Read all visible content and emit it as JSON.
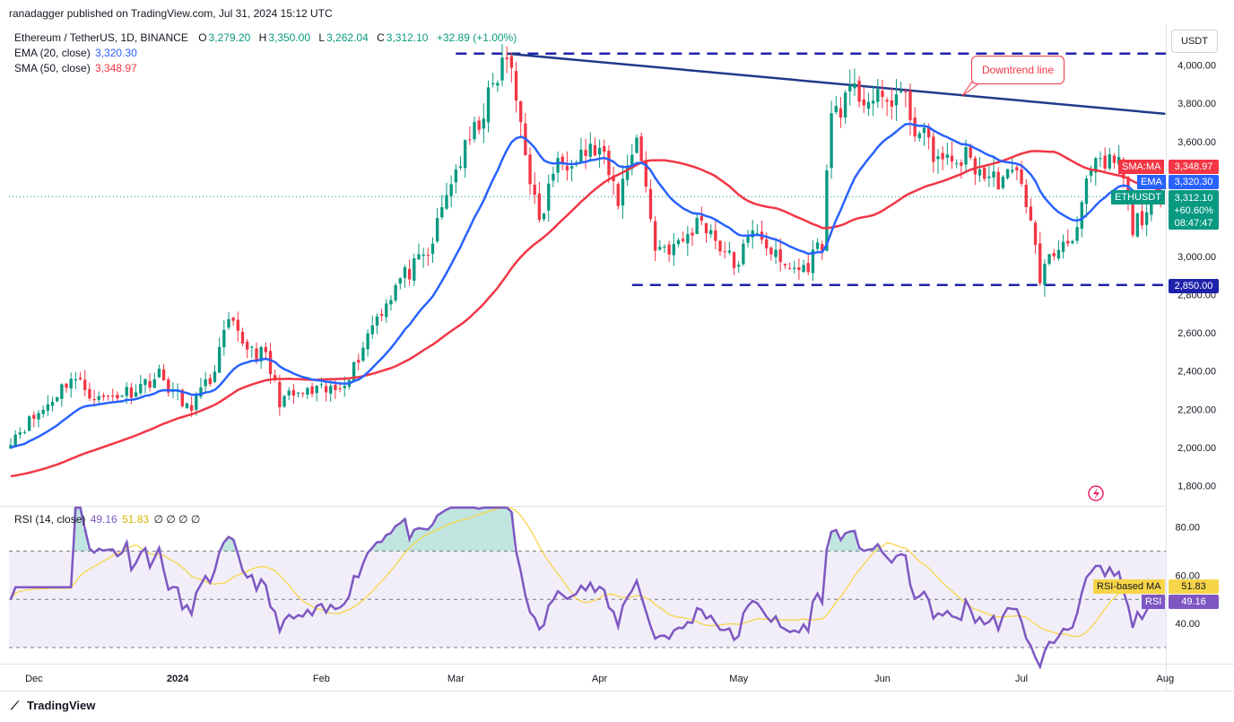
{
  "header": {
    "publisher": "ranadagger published on TradingView.com, Jul 31, 2024 15:12 UTC",
    "symbol": "Ethereum / TetherUS, 1D, BINANCE",
    "o_label": "O",
    "o_value": "3,279.20",
    "h_label": "H",
    "h_value": "3,350.00",
    "l_label": "L",
    "l_value": "3,262.04",
    "c_label": "C",
    "c_value": "3,312.10",
    "change": "+32.89 (+1.00%)"
  },
  "indicators": {
    "ema_label": "EMA (20, close)",
    "ema_value": "3,320.30",
    "sma_label": "SMA (50, close)",
    "sma_value": "3,348.97",
    "rsi_label": "RSI (14, close)",
    "rsi_value": "49.16",
    "rsi_ma_value": "51.83",
    "rsi_extra": "∅ ∅ ∅ ∅"
  },
  "currency_button": "USDT",
  "annotation": "Downtrend line",
  "axis_tags": {
    "sma_name": "SMA:MA",
    "sma_value": "3,348.97",
    "ema_name": "EMA",
    "ema_value": "3,320.30",
    "sym_name": "ETHUSDT",
    "price": "3,312.10",
    "change_pct": "+60.60%",
    "countdown": "08:47:47",
    "support": "2,850.00",
    "rsi_ma_name": "RSI-based MA",
    "rsi_ma_value": "51.83",
    "rsi_name": "RSI",
    "rsi_value": "49.16"
  },
  "brand": "TradingView",
  "colors": {
    "up": "#089981",
    "down": "#f23645",
    "ema": "#2962ff",
    "sma": "#f23645",
    "trendline": "#1e3a8a",
    "support": "#1e22aa",
    "rsi": "#7e57c2",
    "rsi_ma": "#f7d548"
  },
  "chart_data": [
    {
      "type": "candlestick",
      "title": "Ethereum / TetherUS, 1D, BINANCE",
      "ylim": [
        1700,
        4100
      ],
      "y_ticks": [
        "4,000.00",
        "3,800.00",
        "3,600.00",
        "3,400.00",
        "3,200.00",
        "3,000.00",
        "2,800.00",
        "2,600.00",
        "2,400.00",
        "2,200.00",
        "2,000.00",
        "1,800.00"
      ],
      "x_ticks": [
        "Dec",
        "2024",
        "Feb",
        "Mar",
        "Apr",
        "May",
        "Jun",
        "Jul",
        "Aug"
      ],
      "price_anchors": [
        [
          "2023-11-26",
          2050
        ],
        [
          "2023-12-03",
          2200
        ],
        [
          "2023-12-09",
          2370
        ],
        [
          "2023-12-15",
          2250
        ],
        [
          "2023-12-22",
          2300
        ],
        [
          "2023-12-28",
          2380
        ],
        [
          "2024-01-03",
          2200
        ],
        [
          "2024-01-08",
          2350
        ],
        [
          "2024-01-12",
          2650
        ],
        [
          "2024-01-15",
          2550
        ],
        [
          "2024-01-20",
          2470
        ],
        [
          "2024-01-23",
          2250
        ],
        [
          "2024-01-28",
          2280
        ],
        [
          "2024-02-04",
          2300
        ],
        [
          "2024-02-08",
          2420
        ],
        [
          "2024-02-12",
          2650
        ],
        [
          "2024-02-18",
          2880
        ],
        [
          "2024-02-24",
          3000
        ],
        [
          "2024-02-29",
          3400
        ],
        [
          "2024-03-05",
          3650
        ],
        [
          "2024-03-12",
          4050
        ],
        [
          "2024-03-15",
          3700
        ],
        [
          "2024-03-19",
          3150
        ],
        [
          "2024-03-22",
          3450
        ],
        [
          "2024-03-27",
          3550
        ],
        [
          "2024-04-01",
          3550
        ],
        [
          "2024-04-05",
          3300
        ],
        [
          "2024-04-09",
          3650
        ],
        [
          "2024-04-13",
          3050
        ],
        [
          "2024-04-18",
          3050
        ],
        [
          "2024-04-23",
          3200
        ],
        [
          "2024-04-30",
          2950
        ],
        [
          "2024-05-05",
          3150
        ],
        [
          "2024-05-10",
          2950
        ],
        [
          "2024-05-15",
          2930
        ],
        [
          "2024-05-19",
          3080
        ],
        [
          "2024-05-21",
          3750
        ],
        [
          "2024-05-26",
          3850
        ],
        [
          "2024-06-01",
          3800
        ],
        [
          "2024-06-05",
          3850
        ],
        [
          "2024-06-08",
          3680
        ],
        [
          "2024-06-14",
          3480
        ],
        [
          "2024-06-19",
          3520
        ],
        [
          "2024-06-24",
          3400
        ],
        [
          "2024-07-01",
          3420
        ],
        [
          "2024-07-05",
          2900
        ],
        [
          "2024-07-09",
          3050
        ],
        [
          "2024-07-13",
          3150
        ],
        [
          "2024-07-16",
          3450
        ],
        [
          "2024-07-22",
          3500
        ],
        [
          "2024-07-25",
          3150
        ],
        [
          "2024-07-28",
          3250
        ],
        [
          "2024-07-31",
          3312.1
        ]
      ],
      "ema_20_last": 3320.3,
      "sma_50_last": 3348.97,
      "resistance_trendline": [
        [
          "2024-03-12",
          4060
        ],
        [
          "2024-08-01",
          3745
        ]
      ],
      "support_line": 2850,
      "top_line": 4060,
      "annotations": [
        "Downtrend line"
      ]
    },
    {
      "type": "line",
      "title": "RSI (14, close)",
      "ylim": [
        20,
        90
      ],
      "y_ticks": [
        "80.00",
        "60.00",
        "40.00"
      ],
      "bands": [
        30,
        50,
        70
      ],
      "last_rsi": 49.16,
      "last_rsi_ma": 51.83
    }
  ]
}
